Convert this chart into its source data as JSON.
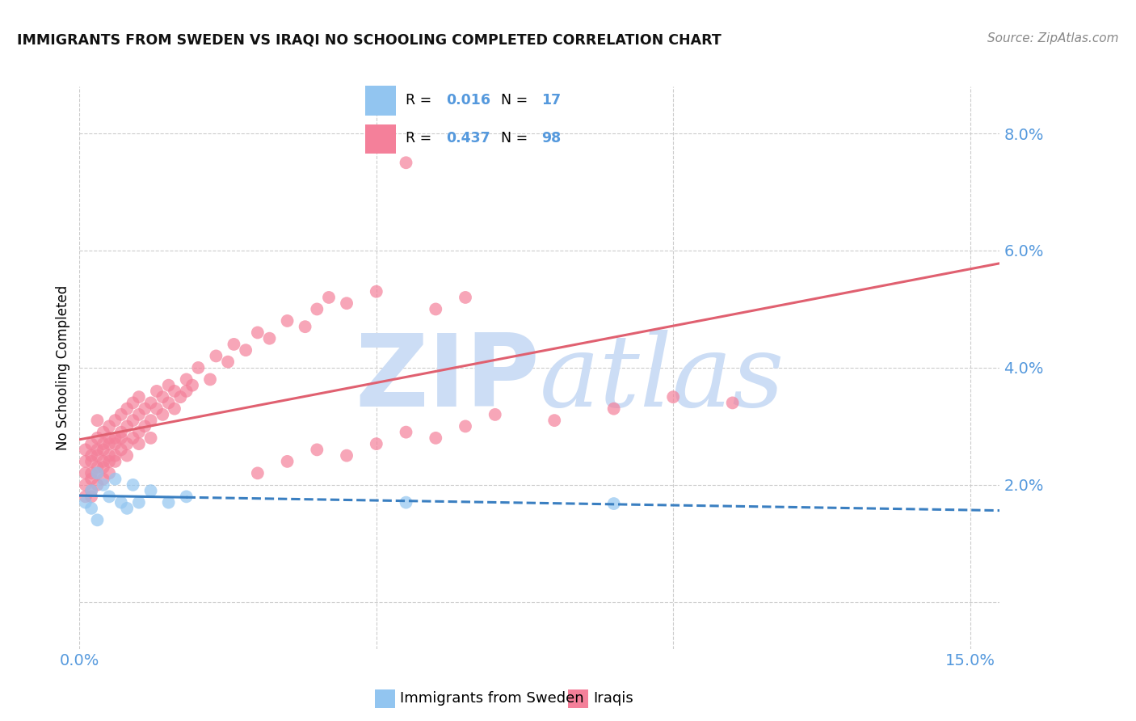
{
  "title": "IMMIGRANTS FROM SWEDEN VS IRAQI NO SCHOOLING COMPLETED CORRELATION CHART",
  "source": "Source: ZipAtlas.com",
  "ylabel": "No Schooling Completed",
  "xlim": [
    0.0,
    0.155
  ],
  "ylim": [
    -0.008,
    0.088
  ],
  "x_ticks": [
    0.0,
    0.05,
    0.1,
    0.15
  ],
  "x_tick_labels": [
    "0.0%",
    "",
    "",
    "15.0%"
  ],
  "y_ticks": [
    0.0,
    0.02,
    0.04,
    0.06,
    0.08
  ],
  "y_tick_labels": [
    "",
    "2.0%",
    "4.0%",
    "6.0%",
    "8.0%"
  ],
  "R_sweden": "0.016",
  "N_sweden": "17",
  "R_iraq": "0.437",
  "N_iraq": "98",
  "color_sweden": "#92c5f0",
  "color_iraq": "#f4809a",
  "color_trendline_sweden": "#3a7fc1",
  "color_trendline_iraq": "#e06070",
  "color_axis_labels": "#5599dd",
  "color_title": "#111111",
  "color_source": "#888888",
  "watermark_zip": "ZIP",
  "watermark_atlas": "atlas",
  "watermark_color": "#ccddf5",
  "background_color": "#ffffff",
  "grid_color": "#cccccc",
  "sweden_x": [
    0.001,
    0.002,
    0.002,
    0.003,
    0.003,
    0.004,
    0.005,
    0.006,
    0.007,
    0.008,
    0.009,
    0.01,
    0.012,
    0.015,
    0.018,
    0.055,
    0.09
  ],
  "sweden_y": [
    0.017,
    0.016,
    0.019,
    0.022,
    0.014,
    0.02,
    0.018,
    0.021,
    0.017,
    0.016,
    0.02,
    0.017,
    0.019,
    0.017,
    0.018,
    0.017,
    0.0168
  ],
  "iraq_x": [
    0.001,
    0.001,
    0.001,
    0.001,
    0.001,
    0.002,
    0.002,
    0.002,
    0.002,
    0.002,
    0.002,
    0.002,
    0.003,
    0.003,
    0.003,
    0.003,
    0.003,
    0.003,
    0.003,
    0.004,
    0.004,
    0.004,
    0.004,
    0.004,
    0.004,
    0.005,
    0.005,
    0.005,
    0.005,
    0.005,
    0.005,
    0.006,
    0.006,
    0.006,
    0.006,
    0.006,
    0.007,
    0.007,
    0.007,
    0.007,
    0.008,
    0.008,
    0.008,
    0.008,
    0.009,
    0.009,
    0.009,
    0.01,
    0.01,
    0.01,
    0.01,
    0.011,
    0.011,
    0.012,
    0.012,
    0.012,
    0.013,
    0.013,
    0.014,
    0.014,
    0.015,
    0.015,
    0.016,
    0.016,
    0.017,
    0.018,
    0.018,
    0.019,
    0.02,
    0.022,
    0.023,
    0.025,
    0.026,
    0.028,
    0.03,
    0.032,
    0.035,
    0.038,
    0.04,
    0.042,
    0.045,
    0.05,
    0.055,
    0.06,
    0.065,
    0.03,
    0.035,
    0.04,
    0.045,
    0.05,
    0.055,
    0.06,
    0.065,
    0.07,
    0.08,
    0.09,
    0.1,
    0.11
  ],
  "iraq_y": [
    0.02,
    0.024,
    0.018,
    0.022,
    0.026,
    0.019,
    0.022,
    0.025,
    0.018,
    0.021,
    0.024,
    0.027,
    0.02,
    0.023,
    0.026,
    0.022,
    0.025,
    0.028,
    0.031,
    0.021,
    0.024,
    0.027,
    0.023,
    0.026,
    0.029,
    0.022,
    0.025,
    0.028,
    0.024,
    0.027,
    0.03,
    0.025,
    0.028,
    0.024,
    0.031,
    0.027,
    0.026,
    0.029,
    0.032,
    0.028,
    0.027,
    0.03,
    0.033,
    0.025,
    0.028,
    0.031,
    0.034,
    0.029,
    0.032,
    0.027,
    0.035,
    0.03,
    0.033,
    0.031,
    0.034,
    0.028,
    0.033,
    0.036,
    0.032,
    0.035,
    0.034,
    0.037,
    0.033,
    0.036,
    0.035,
    0.036,
    0.038,
    0.037,
    0.04,
    0.038,
    0.042,
    0.041,
    0.044,
    0.043,
    0.046,
    0.045,
    0.048,
    0.047,
    0.05,
    0.052,
    0.051,
    0.053,
    0.075,
    0.05,
    0.052,
    0.022,
    0.024,
    0.026,
    0.025,
    0.027,
    0.029,
    0.028,
    0.03,
    0.032,
    0.031,
    0.033,
    0.035,
    0.034
  ],
  "figsize": [
    14.06,
    8.92
  ],
  "dpi": 100
}
